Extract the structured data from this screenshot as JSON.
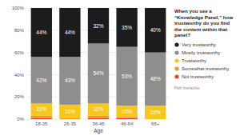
{
  "chart_data": {
    "type": "bar",
    "title": "When you see a “Knowledge Panel,” how trustworthy do you find the content within that panel?",
    "x_label": "Age",
    "annotations": [
      "Path Interactive"
    ],
    "categories": [
      "18-25",
      "26-35",
      "36-45",
      "46-64",
      "65+"
    ],
    "stacked": true,
    "data_labels": true,
    "grid": true,
    "legend": "right",
    "ylim": [
      0,
      100
    ],
    "yticks": [
      {
        "value": 0,
        "label": "0%"
      },
      {
        "value": 20,
        "label": "20%"
      },
      {
        "value": 40,
        "label": "40%"
      },
      {
        "value": 60,
        "label": "60%"
      },
      {
        "value": 80,
        "label": "80%"
      },
      {
        "value": 100,
        "label": "100%"
      }
    ],
    "series": [
      {
        "name": "Not trustworthy",
        "color": "#e8433a",
        "values": [
          1,
          0,
          1,
          1,
          0
        ]
      },
      {
        "name": "Somewhat trustworthy",
        "color": "#f39a1e",
        "values": [
          2,
          1,
          2,
          1,
          0
        ]
      },
      {
        "name": "Trustworthy",
        "color": "#f7c81b",
        "values": [
          11,
          12,
          11,
          10,
          12
        ],
        "value_labels": [
          "11%",
          "12%",
          "11%",
          "10%",
          "12%"
        ]
      },
      {
        "name": "Mostly trustworthy",
        "color": "#8e8e8e",
        "values": [
          42,
          43,
          54,
          53,
          48
        ],
        "value_labels": [
          "42%",
          "43%",
          "54%",
          "53%",
          "48%"
        ]
      },
      {
        "name": "Very trustworthy",
        "color": "#1c1c1c",
        "values": [
          44,
          44,
          32,
          35,
          40
        ],
        "value_labels": [
          "44%",
          "44%",
          "32%",
          "35%",
          "40%"
        ]
      }
    ]
  }
}
